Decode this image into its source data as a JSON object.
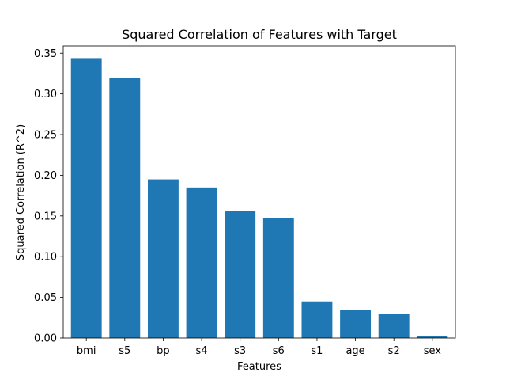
{
  "chart_data": {
    "type": "bar",
    "title": "Squared Correlation of Features with Target",
    "xlabel": "Features",
    "ylabel": "Squared Correlation (R^2)",
    "categories": [
      "bmi",
      "s5",
      "bp",
      "s4",
      "s3",
      "s6",
      "s1",
      "age",
      "s2",
      "sex"
    ],
    "values": [
      0.344,
      0.32,
      0.195,
      0.185,
      0.156,
      0.147,
      0.045,
      0.035,
      0.03,
      0.002
    ],
    "ylim": [
      0,
      0.359
    ],
    "yticks": [
      0.0,
      0.05,
      0.1,
      0.15,
      0.2,
      0.25,
      0.3,
      0.35
    ],
    "ytick_labels": [
      "0.00",
      "0.05",
      "0.10",
      "0.15",
      "0.20",
      "0.25",
      "0.30",
      "0.35"
    ],
    "grid": false,
    "legend": "none",
    "bar_color": "#1f77b4"
  }
}
